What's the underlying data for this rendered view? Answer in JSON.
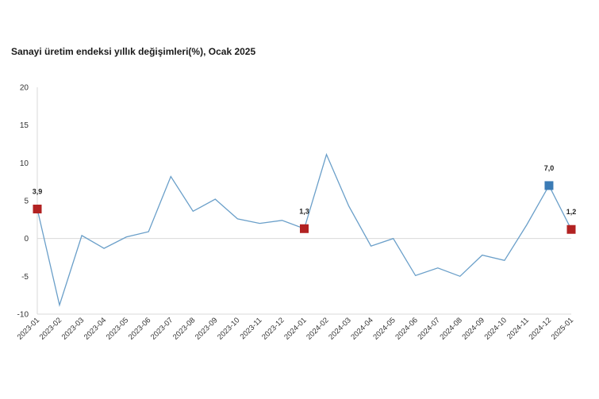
{
  "chart_data": {
    "type": "line",
    "title": "Sanayi üretim endeksi yıllık değişimleri(%), Ocak 2025",
    "xlabel": "",
    "ylabel": "",
    "ylim": [
      -10,
      20
    ],
    "yticks": [
      20,
      15,
      10,
      5,
      0,
      -5,
      -10
    ],
    "grid": false,
    "categories": [
      "2023-01",
      "2023-02",
      "2023-03",
      "2023-04",
      "2023-05",
      "2023-06",
      "2023-07",
      "2023-08",
      "2023-09",
      "2023-10",
      "2023-11",
      "2023-12",
      "2024-01",
      "2024-02",
      "2024-03",
      "2024-04",
      "2024-05",
      "2024-06",
      "2024-07",
      "2024-08",
      "2024-09",
      "2024-10",
      "2024-11",
      "2024-12",
      "2025-01"
    ],
    "series": [
      {
        "values": [
          3.9,
          -8.8,
          0.4,
          -1.3,
          0.2,
          0.9,
          8.2,
          3.6,
          5.2,
          2.6,
          2.0,
          2.4,
          1.3,
          11.1,
          4.3,
          -1.0,
          0.0,
          -4.9,
          -3.9,
          -5.0,
          -2.2,
          -2.9,
          1.8,
          7.0,
          1.2
        ],
        "color": "#6a9fc9"
      }
    ],
    "markers": [
      {
        "index": 0,
        "label": "3,9",
        "color": "#b22222"
      },
      {
        "index": 12,
        "label": "1,3",
        "color": "#b22222"
      },
      {
        "index": 23,
        "label": "7,0",
        "color": "#3b7bb5"
      },
      {
        "index": 24,
        "label": "1,2",
        "color": "#b22222"
      }
    ],
    "axis_color": "#d9d9d9"
  }
}
